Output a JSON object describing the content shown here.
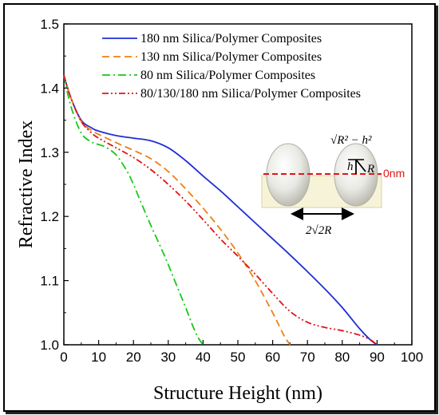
{
  "chart_data": {
    "type": "line",
    "xlabel": "Structure Height (nm)",
    "ylabel": "Refractive Index",
    "xlim": [
      0,
      100
    ],
    "ylim": [
      1.0,
      1.5
    ],
    "xticks": [
      "0",
      "10",
      "20",
      "30",
      "40",
      "50",
      "60",
      "70",
      "80",
      "90",
      "100"
    ],
    "yticks": [
      "1.0",
      "1.1",
      "1.2",
      "1.3",
      "1.4",
      "1.5"
    ],
    "grid": false,
    "legend_position": "top-right",
    "series": [
      {
        "name": "180 nm Silica/Polymer Composites",
        "color": "#1f2fd6",
        "dash": "solid",
        "x": [
          0,
          2,
          5,
          8,
          10,
          15,
          20,
          25,
          30,
          35,
          40,
          45,
          50,
          55,
          60,
          65,
          70,
          75,
          80,
          85,
          88,
          90
        ],
        "y": [
          1.42,
          1.385,
          1.35,
          1.338,
          1.333,
          1.326,
          1.322,
          1.318,
          1.307,
          1.287,
          1.263,
          1.24,
          1.215,
          1.19,
          1.165,
          1.14,
          1.114,
          1.087,
          1.058,
          1.025,
          1.008,
          1.0
        ]
      },
      {
        "name": "130 nm Silica/Polymer Composites",
        "color": "#f07f12",
        "dash": "dash",
        "x": [
          0,
          2,
          5,
          8,
          10,
          15,
          20,
          25,
          30,
          35,
          40,
          45,
          50,
          55,
          60,
          62,
          63.5,
          65
        ],
        "y": [
          1.42,
          1.385,
          1.348,
          1.334,
          1.328,
          1.315,
          1.303,
          1.29,
          1.27,
          1.243,
          1.213,
          1.18,
          1.143,
          1.1,
          1.05,
          1.028,
          1.012,
          1.0
        ]
      },
      {
        "name": "80 nm Silica/Polymer Composites",
        "color": "#19c819",
        "dash": "dashdot",
        "x": [
          0,
          2,
          5,
          8,
          10,
          12,
          15,
          18,
          20,
          22,
          25,
          28,
          30,
          32,
          35,
          37,
          38.5,
          40
        ],
        "y": [
          1.42,
          1.372,
          1.33,
          1.316,
          1.312,
          1.308,
          1.296,
          1.272,
          1.25,
          1.224,
          1.186,
          1.15,
          1.125,
          1.098,
          1.058,
          1.03,
          1.012,
          1.0
        ]
      },
      {
        "name": "80/130/180 nm Silica/Polymer Composites",
        "color": "#e0141a",
        "dash": "dashdotdot",
        "x": [
          0,
          2,
          5,
          8,
          10,
          15,
          20,
          25,
          30,
          35,
          40,
          45,
          50,
          55,
          60,
          65,
          70,
          75,
          80,
          85,
          88,
          90
        ],
        "y": [
          1.42,
          1.385,
          1.348,
          1.33,
          1.322,
          1.307,
          1.292,
          1.273,
          1.25,
          1.224,
          1.195,
          1.165,
          1.138,
          1.11,
          1.08,
          1.052,
          1.035,
          1.027,
          1.022,
          1.015,
          1.008,
          1.0
        ]
      }
    ],
    "inset": {
      "label_offset": "0nm",
      "label_spacing": "2√2R",
      "label_sqrt": "√R² − h²",
      "label_h": "h",
      "label_r": "R"
    }
  }
}
